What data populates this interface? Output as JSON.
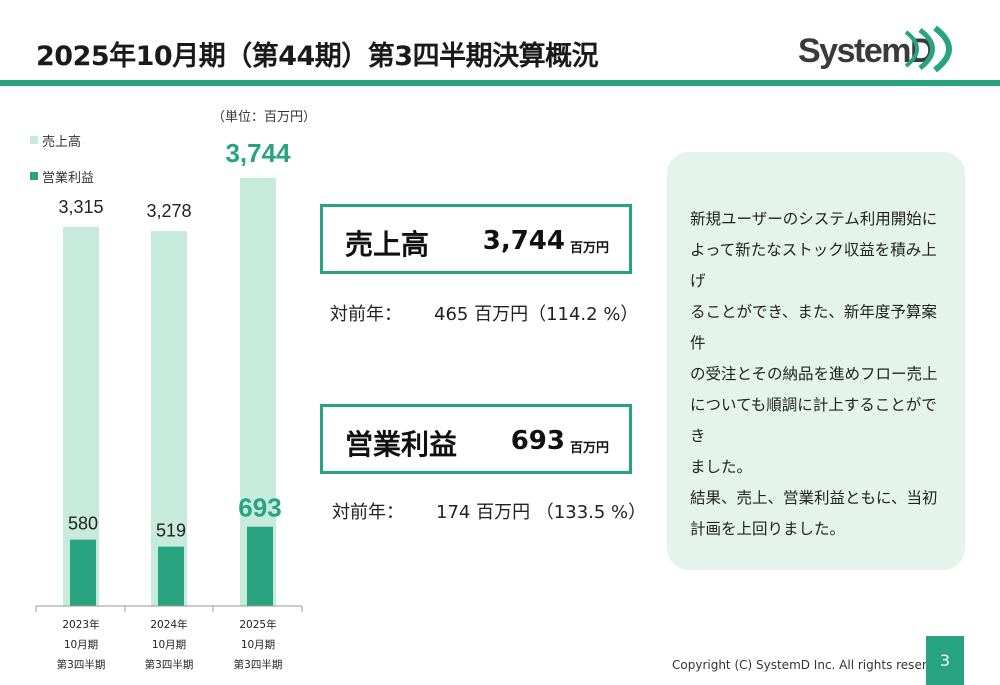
{
  "slide": {
    "title": "2025年10月期（第44期）第3四半期決算概況",
    "logo_text": "SystemD",
    "page_number": "3",
    "copyright": "Copyright (C) SystemD Inc. All rights reserved."
  },
  "colors": {
    "accent": "#27a37f",
    "sales_bar": "#c6eadb",
    "op_bar": "#27a37f",
    "highlight_text": "#27a37f",
    "comment_bg": "#e4f3ec"
  },
  "chart_data": {
    "type": "bar",
    "unit_label": "（単位：百万円）",
    "categories": [
      [
        "2023年",
        "10月期",
        "第3四半期"
      ],
      [
        "2024年",
        "10月期",
        "第3四半期"
      ],
      [
        "2025年",
        "10月期",
        "第3四半期"
      ]
    ],
    "series": [
      {
        "name": "売上高",
        "values": [
          3315,
          3278,
          3744
        ],
        "labels": [
          "3,315",
          "3,278",
          "3,744"
        ]
      },
      {
        "name": "営業利益",
        "values": [
          580,
          519,
          693
        ],
        "labels": [
          "580",
          "519",
          "693"
        ]
      }
    ],
    "ylim": [
      0,
      3900
    ],
    "highlight_index": 2,
    "legend_position": "top-left",
    "grid": false
  },
  "summary": {
    "sales": {
      "label": "売上高",
      "value": "3,744",
      "unit": "百万円",
      "yoy_label": "対前年：",
      "yoy_value": "465 百万円（114.2 %）"
    },
    "operating_profit": {
      "label": "営業利益",
      "value": "693",
      "unit": "百万円",
      "yoy_label": "対前年：",
      "yoy_value": "174 百万円 （133.5 %）"
    }
  },
  "comment": {
    "lines": [
      "新規ユーザーのシステム利用開始に",
      "よって新たなストック収益を積み上げ",
      "ることができ、また、新年度予算案件",
      "の受注とその納品を進めフロー売上",
      "についても順調に計上することができ",
      "ました。",
      "結果、売上、営業利益ともに、当初",
      "計画を上回りました。"
    ]
  }
}
